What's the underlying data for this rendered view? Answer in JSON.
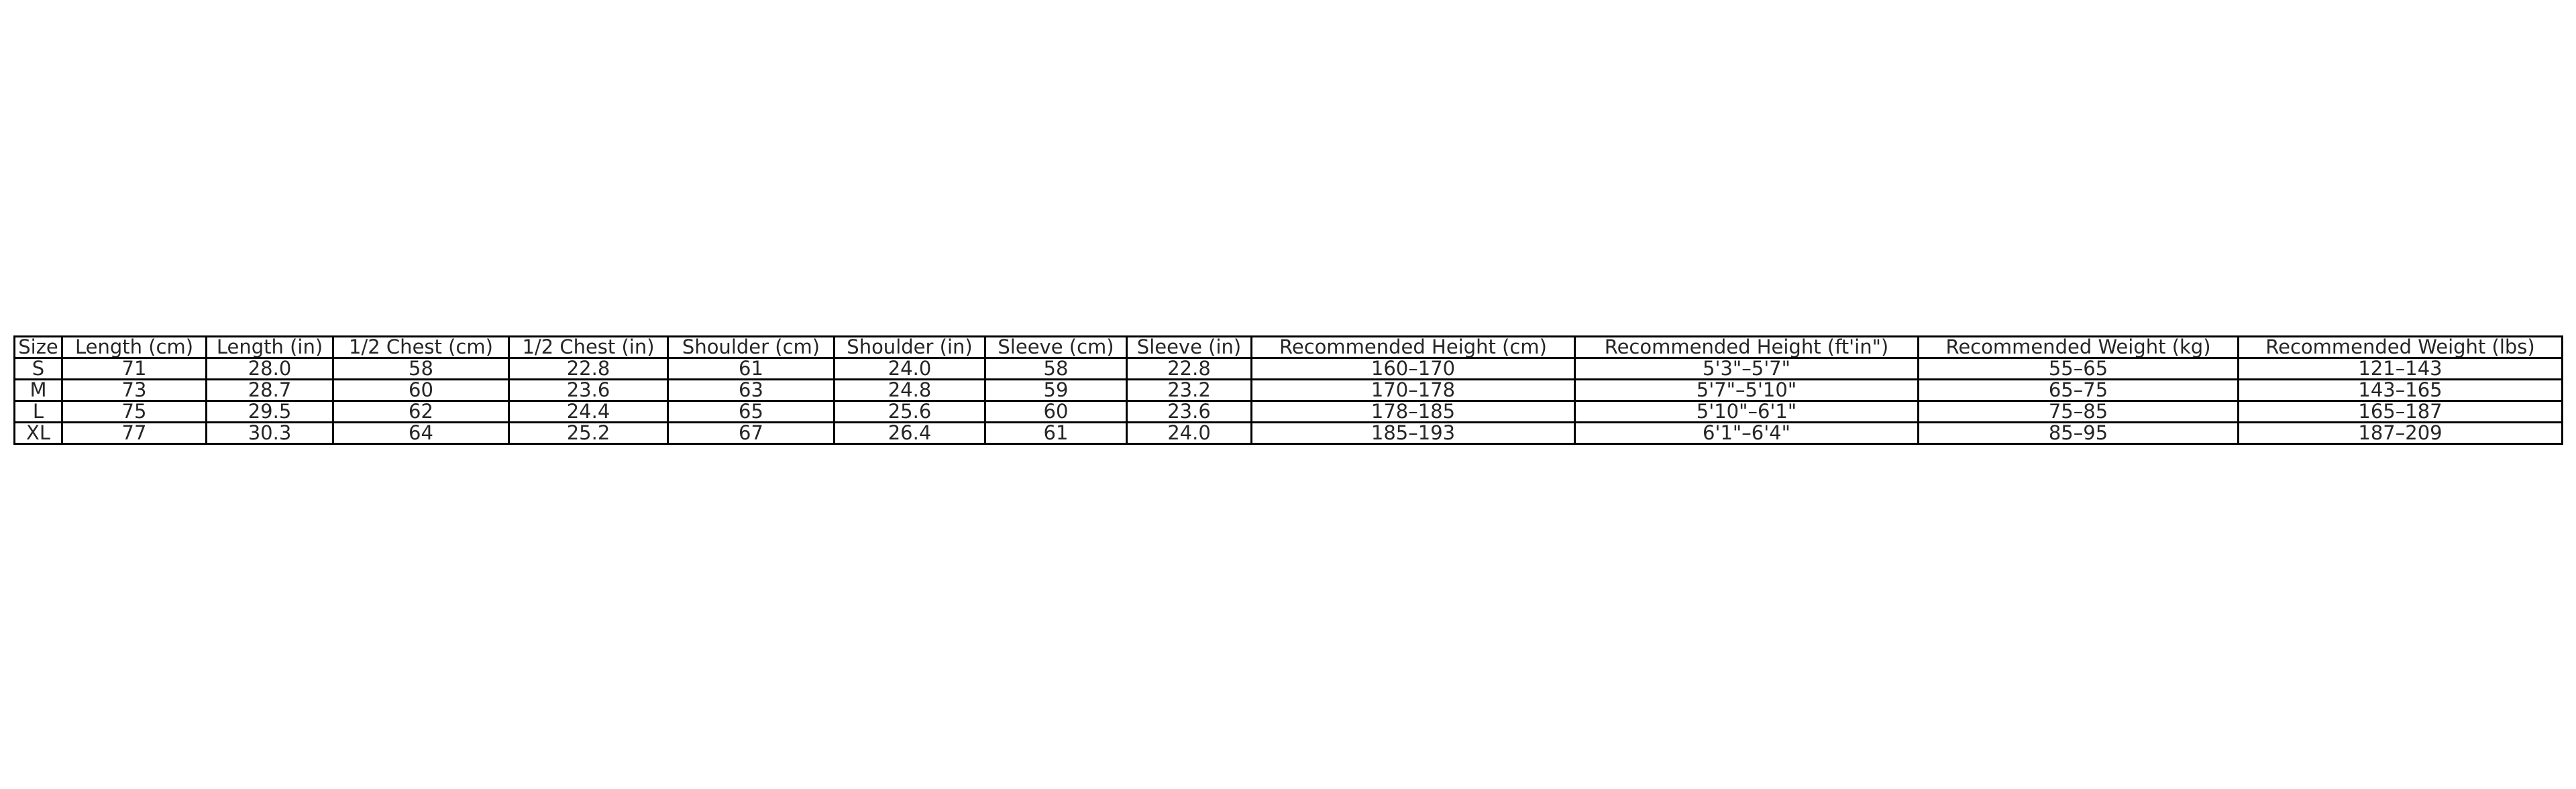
{
  "table": {
    "header": [
      "Size",
      "Length (cm)",
      "Length (in)",
      "1/2 Chest (cm)",
      "1/2 Chest (in)",
      "Shoulder (cm)",
      "Shoulder (in)",
      "Sleeve (cm)",
      "Sleeve (in)",
      "Recommended Height (cm)",
      "Recommended Height (ft'in\")",
      "Recommended Weight (kg)",
      "Recommended Weight (lbs)"
    ],
    "rows": [
      [
        "S",
        "71",
        "28.0",
        "58",
        "22.8",
        "61",
        "24.0",
        "58",
        "22.8",
        "160–170",
        "5'3\"–5'7\"",
        "55–65",
        "121–143"
      ],
      [
        "M",
        "73",
        "28.7",
        "60",
        "23.6",
        "63",
        "24.8",
        "59",
        "23.2",
        "170–178",
        "5'7\"–5'10\"",
        "65–75",
        "143–165"
      ],
      [
        "L",
        "75",
        "29.5",
        "62",
        "24.4",
        "65",
        "25.6",
        "60",
        "23.6",
        "178–185",
        "5'10\"–6'1\"",
        "75–85",
        "165–187"
      ],
      [
        "XL",
        "77",
        "30.3",
        "64",
        "25.2",
        "67",
        "26.4",
        "61",
        "24.0",
        "185–193",
        "6'1\"–6'4\"",
        "85–95",
        "187–209"
      ]
    ]
  }
}
